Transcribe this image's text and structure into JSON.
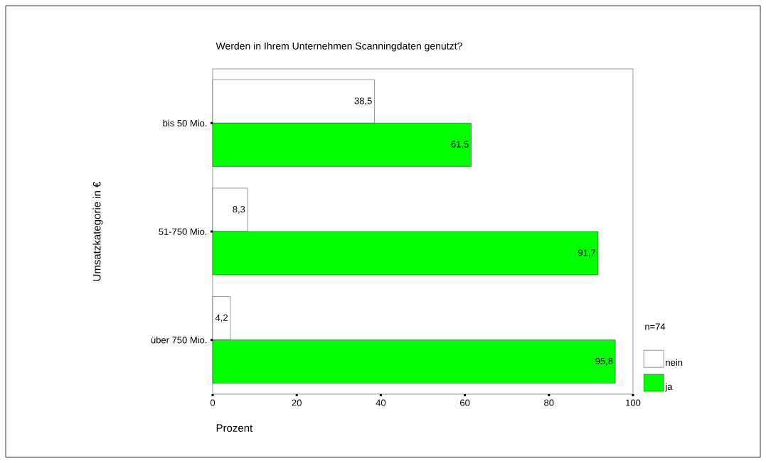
{
  "chart_data": {
    "type": "bar",
    "orientation": "horizontal",
    "title": "Werden in Ihrem Unternehmen Scanningdaten genutzt?",
    "xlabel": "Prozent",
    "ylabel": "Umsatzkategorie in €",
    "legend_title": "n=74",
    "categories": [
      "bis 50 Mio.",
      "51-750 Mio.",
      "über 750 Mio."
    ],
    "series": [
      {
        "name": "nein",
        "color": "#ffffff",
        "values": [
          38.5,
          8.3,
          4.2
        ],
        "value_labels": [
          "38,5",
          "8,3",
          "4,2"
        ]
      },
      {
        "name": "ja",
        "color": "#00ff00",
        "values": [
          61.5,
          91.7,
          95.8
        ],
        "value_labels": [
          "61,5",
          "91,7",
          "95,8"
        ]
      }
    ],
    "xlim": [
      0,
      100
    ],
    "xticks": [
      0,
      20,
      40,
      60,
      80,
      100
    ],
    "grid": false,
    "legend": "right"
  }
}
